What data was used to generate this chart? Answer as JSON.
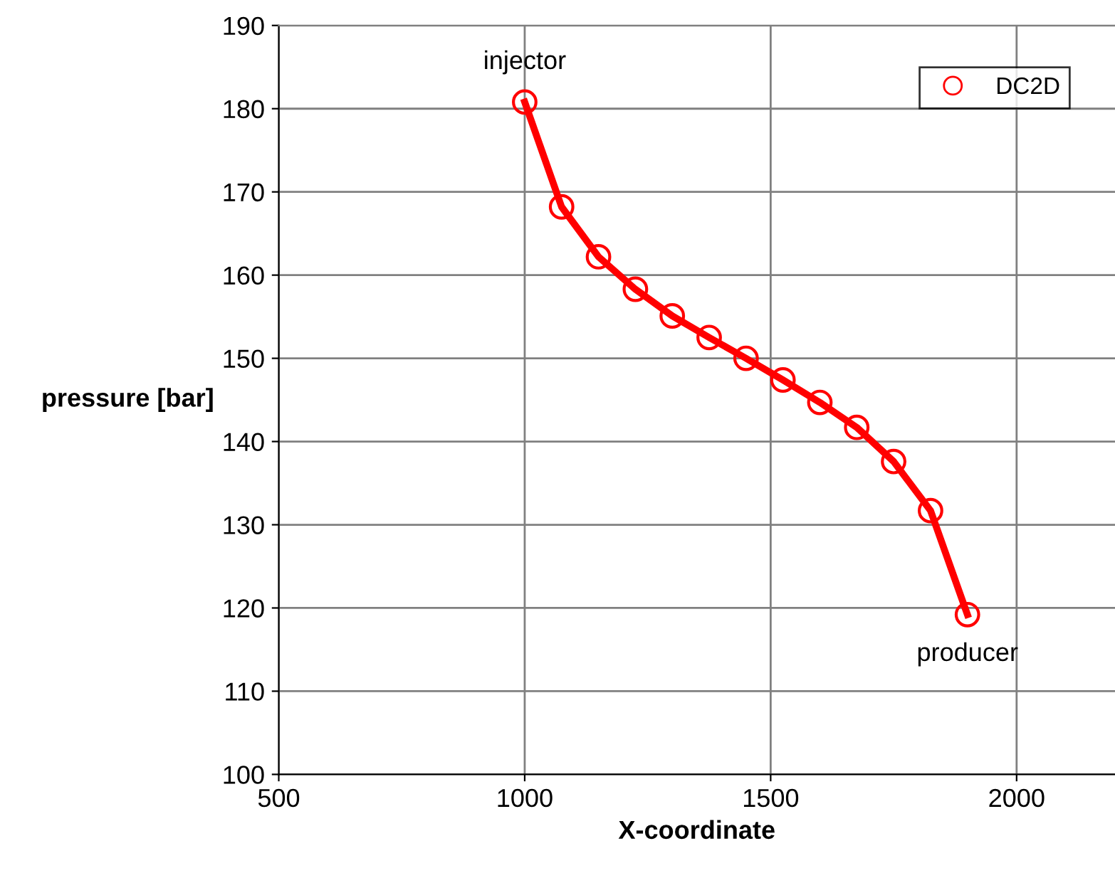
{
  "chart_data": {
    "type": "line",
    "xlabel": "X-coordinate",
    "ylabel": "pressure [bar]",
    "xlim": [
      500,
      2200
    ],
    "ylim": [
      100,
      190
    ],
    "xticks": [
      500,
      1000,
      1500,
      2000
    ],
    "yticks": [
      100,
      110,
      120,
      130,
      140,
      150,
      160,
      170,
      180,
      190
    ],
    "grid": true,
    "legend": "top right",
    "series": [
      {
        "color": "#ff0000",
        "line_style": "solid",
        "marker": "none",
        "x": [
          1000,
          1075,
          1150,
          1225,
          1300,
          1375,
          1450,
          1525,
          1600,
          1675,
          1750,
          1825,
          1900
        ],
        "values": [
          180.8,
          168.2,
          162.2,
          158.3,
          155.1,
          152.5,
          150.0,
          147.4,
          144.7,
          141.7,
          137.6,
          131.7,
          119.2
        ]
      },
      {
        "type": "scatter",
        "name": "DC2D",
        "color": "#ff0000",
        "marker": "circle",
        "x": [
          1000,
          1075,
          1150,
          1225,
          1300,
          1375,
          1450,
          1525,
          1600,
          1675,
          1750,
          1825,
          1900
        ],
        "values": [
          180.8,
          168.2,
          162.2,
          158.3,
          155.1,
          152.5,
          150.0,
          147.4,
          144.7,
          141.7,
          137.6,
          131.7,
          119.2
        ]
      }
    ],
    "annotations": [
      {
        "text": "injector",
        "x": 1000,
        "y": 180.8
      },
      {
        "text": "producer",
        "x": 1900,
        "y": 119.2
      }
    ]
  }
}
